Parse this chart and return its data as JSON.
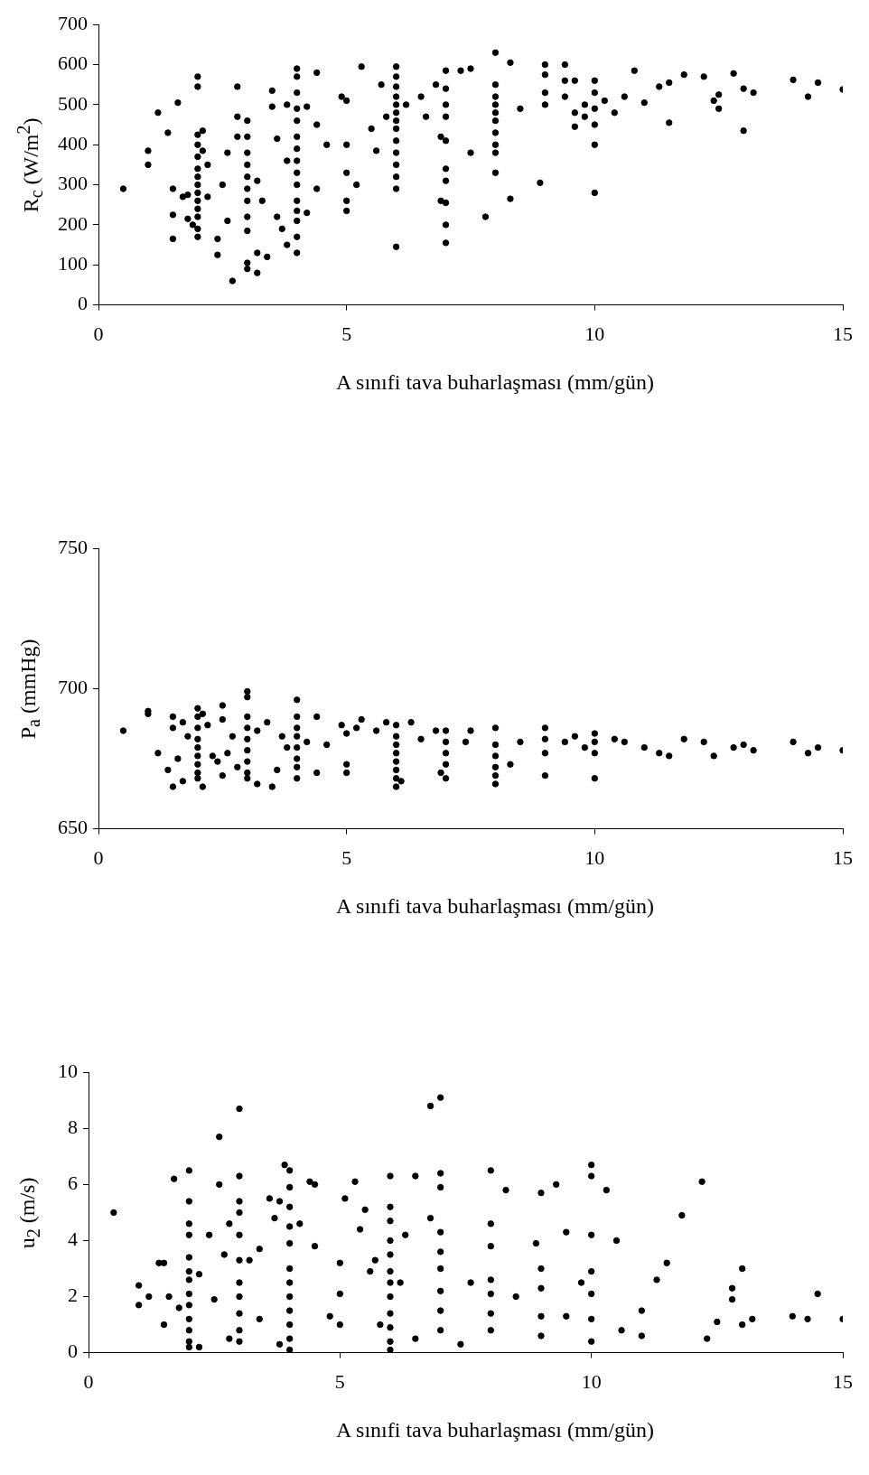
{
  "chart_data": [
    {
      "type": "scatter",
      "xlabel": "A sınıfi tava buharlaşması (mm/gün)",
      "ylabel": "R$_{c}$ (W/m$^{2}$)",
      "color": "#000000",
      "marker": "circle",
      "grid": false,
      "legend": false,
      "xlim": [
        0,
        15
      ],
      "xticks": [
        0,
        5,
        10,
        15
      ],
      "ylim": [
        0,
        700
      ],
      "yticks": [
        0,
        100,
        200,
        300,
        400,
        500,
        600,
        700
      ],
      "x": [
        0.5,
        1,
        1,
        1.2,
        1.4,
        1.5,
        1.5,
        1.5,
        1.6,
        1.7,
        1.8,
        1.8,
        1.9,
        2,
        2,
        2,
        2,
        2,
        2,
        2,
        2,
        2,
        2,
        2,
        2,
        2,
        2,
        2.1,
        2.1,
        2.2,
        2.2,
        2.4,
        2.4,
        2.5,
        2.6,
        2.6,
        2.7,
        2.8,
        2.8,
        2.8,
        3,
        3,
        3,
        3,
        3,
        3,
        3,
        3,
        3,
        3,
        3,
        3.2,
        3.2,
        3.2,
        3.3,
        3.4,
        3.5,
        3.5,
        3.6,
        3.6,
        3.7,
        3.8,
        3.8,
        3.8,
        4,
        4,
        4,
        4,
        4,
        4,
        4,
        4,
        4,
        4,
        4,
        4,
        4,
        4,
        4,
        4.2,
        4.2,
        4.4,
        4.4,
        4.4,
        4.6,
        4.9,
        5,
        5,
        5,
        5,
        5,
        5.2,
        5.3,
        5.5,
        5.6,
        5.7,
        5.8,
        6,
        6,
        6,
        6,
        6,
        6,
        6,
        6,
        6,
        6,
        6,
        6,
        6,
        6,
        6.2,
        6.5,
        6.6,
        6.8,
        6.9,
        6.9,
        7,
        7,
        7,
        7,
        7,
        7,
        7,
        7,
        7,
        7,
        7.3,
        7.5,
        7.5,
        7.8,
        8,
        8,
        8,
        8,
        8,
        8,
        8,
        8,
        8,
        8,
        8.3,
        8.3,
        8.5,
        8.9,
        9,
        9,
        9,
        9,
        9.4,
        9.4,
        9.4,
        9.6,
        9.6,
        9.6,
        9.8,
        9.8,
        10,
        10,
        10,
        10,
        10,
        10,
        10.2,
        10.4,
        10.6,
        10.8,
        11,
        11.3,
        11.5,
        11.5,
        11.8,
        12.2,
        12.4,
        12.5,
        12.5,
        12.8,
        13,
        13,
        13.2,
        14,
        14.3,
        14.5,
        15
      ],
      "values": [
        290,
        385,
        350,
        480,
        430,
        290,
        225,
        165,
        505,
        270,
        275,
        215,
        200,
        570,
        545,
        425,
        400,
        370,
        340,
        320,
        300,
        280,
        260,
        240,
        220,
        190,
        170,
        435,
        385,
        350,
        270,
        165,
        125,
        300,
        380,
        210,
        60,
        545,
        470,
        420,
        460,
        420,
        380,
        350,
        320,
        290,
        260,
        220,
        185,
        105,
        90,
        310,
        130,
        80,
        260,
        120,
        535,
        495,
        415,
        220,
        190,
        500,
        360,
        150,
        590,
        570,
        530,
        490,
        460,
        420,
        390,
        360,
        330,
        300,
        260,
        235,
        210,
        170,
        130,
        495,
        230,
        580,
        450,
        290,
        400,
        520,
        510,
        400,
        330,
        260,
        235,
        300,
        595,
        440,
        385,
        550,
        470,
        595,
        570,
        545,
        520,
        500,
        480,
        460,
        440,
        410,
        380,
        350,
        320,
        290,
        145,
        500,
        520,
        470,
        550,
        420,
        260,
        585,
        540,
        500,
        470,
        410,
        340,
        310,
        255,
        200,
        155,
        585,
        590,
        380,
        220,
        630,
        550,
        520,
        500,
        480,
        460,
        430,
        400,
        380,
        330,
        605,
        265,
        490,
        305,
        600,
        575,
        530,
        500,
        600,
        560,
        520,
        560,
        480,
        445,
        500,
        470,
        560,
        530,
        490,
        450,
        400,
        280,
        510,
        480,
        520,
        585,
        505,
        545,
        555,
        455,
        575,
        570,
        510,
        525,
        490,
        578,
        540,
        435,
        530,
        562,
        520,
        555,
        538
      ]
    },
    {
      "type": "scatter",
      "xlabel": "A sınıfi tava buharlaşması (mm/gün)",
      "ylabel": "P$_{a}$ (mmHg)",
      "color": "#000000",
      "marker": "circle",
      "grid": false,
      "legend": false,
      "xlim": [
        0,
        15
      ],
      "xticks": [
        0,
        5,
        10,
        15
      ],
      "ylim": [
        650,
        750
      ],
      "yticks": [
        650,
        700,
        750
      ],
      "x": [
        0.5,
        1,
        1,
        1.2,
        1.4,
        1.5,
        1.5,
        1.5,
        1.6,
        1.7,
        1.7,
        1.8,
        2,
        2,
        2,
        2,
        2,
        2,
        2,
        2,
        2,
        2.1,
        2.1,
        2.2,
        2.3,
        2.4,
        2.5,
        2.5,
        2.5,
        2.6,
        2.7,
        2.8,
        3,
        3,
        3,
        3,
        3,
        3,
        3,
        3,
        3,
        3.2,
        3.2,
        3.4,
        3.5,
        3.6,
        3.7,
        3.8,
        4,
        4,
        4,
        4,
        4,
        4,
        4,
        4,
        4.2,
        4.4,
        4.4,
        4.6,
        4.9,
        5,
        5,
        5,
        5.2,
        5.3,
        5.6,
        5.8,
        6,
        6,
        6,
        6,
        6,
        6,
        6,
        6,
        6.1,
        6.3,
        6.5,
        6.8,
        6.9,
        7,
        7,
        7,
        7,
        7,
        7.4,
        7.5,
        8,
        8,
        8,
        8,
        8,
        8,
        8.3,
        8.5,
        9,
        9,
        9,
        9,
        9.4,
        9.6,
        9.8,
        10,
        10,
        10,
        10,
        10.4,
        10.6,
        11,
        11.3,
        11.5,
        11.8,
        12.2,
        12.4,
        12.8,
        13,
        13.2,
        14,
        14.3,
        14.5,
        15
      ],
      "values": [
        685,
        692,
        691,
        677,
        671,
        665,
        686,
        690,
        675,
        667,
        688,
        683,
        693,
        690,
        686,
        682,
        679,
        676,
        673,
        670,
        668,
        691,
        665,
        687,
        676,
        674,
        694,
        689,
        669,
        677,
        683,
        672,
        699,
        697,
        690,
        686,
        682,
        678,
        674,
        670,
        668,
        666,
        685,
        688,
        665,
        671,
        683,
        679,
        696,
        690,
        686,
        683,
        679,
        675,
        672,
        668,
        681,
        690,
        670,
        680,
        687,
        684,
        673,
        670,
        686,
        689,
        685,
        688,
        687,
        683,
        680,
        677,
        674,
        671,
        668,
        665,
        667,
        688,
        682,
        685,
        670,
        685,
        681,
        677,
        673,
        668,
        681,
        685,
        686,
        680,
        676,
        672,
        669,
        666,
        673,
        681,
        686,
        682,
        677,
        669,
        681,
        683,
        679,
        684,
        681,
        677,
        668,
        682,
        681,
        679,
        677,
        676,
        682,
        681,
        676,
        679,
        680,
        678,
        681,
        677,
        679,
        678
      ]
    },
    {
      "type": "scatter",
      "xlabel": "A sınıfi tava buharlaşması (mm/gün)",
      "ylabel": "u$_{2}$ (m/s)",
      "color": "#000000",
      "marker": "circle",
      "grid": false,
      "legend": false,
      "xlim": [
        0,
        15
      ],
      "xticks": [
        0,
        5,
        10,
        15
      ],
      "ylim": [
        0,
        10
      ],
      "yticks": [
        0,
        2,
        4,
        6,
        8,
        10
      ],
      "x": [
        0.5,
        1,
        1,
        1.2,
        1.4,
        1.5,
        1.5,
        1.6,
        1.7,
        1.8,
        2,
        2,
        2,
        2,
        2,
        2,
        2,
        2,
        2,
        2,
        2,
        2,
        2,
        2.2,
        2.2,
        2.4,
        2.5,
        2.6,
        2.6,
        2.7,
        2.8,
        2.8,
        3,
        3,
        3,
        3,
        3,
        3,
        3,
        3,
        3,
        3,
        3,
        3.2,
        3.4,
        3.4,
        3.6,
        3.7,
        3.8,
        3.8,
        3.9,
        4,
        4,
        4,
        4,
        4,
        4,
        4,
        4,
        4,
        4,
        4,
        4,
        4.2,
        4.4,
        4.5,
        4.5,
        4.8,
        5,
        5,
        5,
        5.1,
        5.3,
        5.4,
        5.5,
        5.6,
        5.7,
        5.8,
        6,
        6,
        6,
        6,
        6,
        6,
        6,
        6,
        6,
        6,
        6,
        6,
        6.2,
        6.3,
        6.5,
        6.5,
        6.8,
        6.8,
        7,
        7,
        7,
        7,
        7,
        7,
        7,
        7,
        7,
        7.4,
        7.6,
        8,
        8,
        8,
        8,
        8,
        8,
        8,
        8.3,
        8.5,
        8.9,
        9,
        9,
        9,
        9,
        9,
        9.3,
        9.5,
        9.5,
        9.8,
        10,
        10,
        10,
        10,
        10,
        10,
        10,
        10.3,
        10.5,
        10.6,
        11,
        11,
        11.3,
        11.5,
        11.8,
        12.2,
        12.3,
        12.5,
        12.8,
        12.8,
        13,
        13,
        13.2,
        14,
        14.3,
        14.5,
        15
      ],
      "values": [
        5,
        2.4,
        1.7,
        2,
        3.2,
        3.2,
        1,
        2,
        6.2,
        1.6,
        6.5,
        5.4,
        4.6,
        4.2,
        3.4,
        2.9,
        2.6,
        2.1,
        1.7,
        1.2,
        0.8,
        0.4,
        0.2,
        2.8,
        0.2,
        4.2,
        1.9,
        7.7,
        6,
        3.5,
        4.6,
        0.5,
        8.7,
        6.3,
        5.4,
        5,
        4.2,
        3.3,
        2.5,
        2,
        1.4,
        0.8,
        0.4,
        3.3,
        3.7,
        1.2,
        5.5,
        4.8,
        5.4,
        0.3,
        6.7,
        6.5,
        5.9,
        5.2,
        4.5,
        3.9,
        3,
        2.5,
        2,
        1.5,
        1,
        0.5,
        0.1,
        4.6,
        6.1,
        6,
        3.8,
        1.3,
        3.2,
        2.1,
        1,
        5.5,
        6.1,
        4.4,
        5.1,
        2.9,
        3.3,
        1,
        6.3,
        5.2,
        4.7,
        4,
        3.5,
        2.9,
        2.5,
        2,
        1.4,
        0.9,
        0.4,
        0.1,
        2.5,
        4.2,
        6.3,
        0.5,
        4.8,
        8.8,
        9.1,
        6.4,
        5.9,
        4.3,
        3.6,
        3,
        2.2,
        1.5,
        0.8,
        0.3,
        2.5,
        6.5,
        4.6,
        3.8,
        2.6,
        2.1,
        1.4,
        0.8,
        5.8,
        2,
        3.9,
        5.7,
        3,
        2.3,
        1.3,
        0.6,
        6,
        4.3,
        1.3,
        2.5,
        6.7,
        6.3,
        4.2,
        2.9,
        2.1,
        1.2,
        0.4,
        5.8,
        4,
        0.8,
        1.5,
        0.6,
        2.6,
        3.2,
        4.9,
        6.1,
        0.5,
        1.1,
        2.3,
        1.9,
        3,
        1,
        1.2,
        1.3,
        1.2,
        2.1,
        1.2
      ]
    }
  ]
}
